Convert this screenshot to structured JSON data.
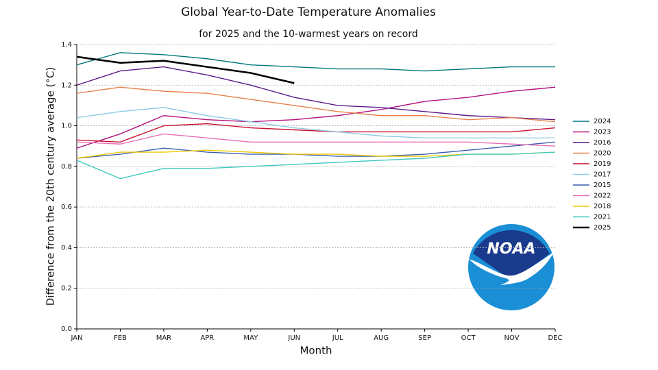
{
  "chart_data": {
    "type": "line",
    "title": "Global Year-to-Date Temperature Anomalies",
    "subtitle": "for 2025 and the 10-warmest years on record",
    "x_label": "Month",
    "y_label": "Difference from the 20th century average (°C)",
    "logo_text": "NOAA",
    "categories": [
      "JAN",
      "FEB",
      "MAR",
      "APR",
      "MAY",
      "JUN",
      "JUL",
      "AUG",
      "SEP",
      "OCT",
      "NOV",
      "DEC"
    ],
    "ylim": [
      0,
      1.4
    ],
    "yticks": [
      {
        "value": 0,
        "label": "0.0"
      },
      0.2,
      0.4,
      0.6,
      0.8,
      {
        "value": 1,
        "label": "1.0"
      },
      1.2,
      1.4
    ],
    "grid": true,
    "legend": "right",
    "series": [
      {
        "name": "2024",
        "color": "#00777a",
        "values": [
          1.3,
          1.36,
          1.35,
          1.33,
          1.3,
          1.29,
          1.28,
          1.28,
          1.27,
          1.28,
          1.29,
          1.29
        ]
      },
      {
        "name": "2023",
        "color": "#b5127e",
        "values": [
          0.89,
          0.96,
          1.05,
          1.03,
          1.02,
          1.03,
          1.05,
          1.08,
          1.12,
          1.14,
          1.17,
          1.19
        ]
      },
      {
        "name": "2016",
        "color": "#5a1a8a",
        "values": [
          1.2,
          1.27,
          1.29,
          1.25,
          1.2,
          1.14,
          1.1,
          1.09,
          1.07,
          1.05,
          1.04,
          1.03
        ]
      },
      {
        "name": "2020",
        "color": "#e8804a",
        "values": [
          1.16,
          1.19,
          1.17,
          1.16,
          1.13,
          1.1,
          1.07,
          1.05,
          1.05,
          1.03,
          1.04,
          1.02
        ]
      },
      {
        "name": "2019",
        "color": "#c8102e",
        "values": [
          0.93,
          0.92,
          1.0,
          1.01,
          0.99,
          0.98,
          0.97,
          0.97,
          0.97,
          0.97,
          0.97,
          0.99
        ]
      },
      {
        "name": "2017",
        "color": "#8ecae6",
        "values": [
          1.04,
          1.07,
          1.09,
          1.05,
          1.02,
          0.99,
          0.97,
          0.95,
          0.94,
          0.94,
          0.94,
          0.94
        ]
      },
      {
        "name": "2015",
        "color": "#3a5fb0",
        "values": [
          0.84,
          0.86,
          0.89,
          0.87,
          0.86,
          0.86,
          0.85,
          0.85,
          0.86,
          0.88,
          0.9,
          0.92
        ]
      },
      {
        "name": "2022",
        "color": "#e870b8",
        "values": [
          0.92,
          0.91,
          0.96,
          0.94,
          0.92,
          0.92,
          0.92,
          0.92,
          0.92,
          0.92,
          0.91,
          0.9
        ]
      },
      {
        "name": "2018",
        "color": "#f0c800",
        "values": [
          0.84,
          0.87,
          0.87,
          0.88,
          0.87,
          0.86,
          0.86,
          0.85,
          0.85,
          0.86,
          0.86,
          0.87
        ]
      },
      {
        "name": "2021",
        "color": "#40c8c0",
        "values": [
          0.83,
          0.74,
          0.79,
          0.79,
          0.8,
          0.81,
          0.82,
          0.83,
          0.84,
          0.86,
          0.86,
          0.87
        ]
      },
      {
        "name": "2025",
        "color": "#000000",
        "values": [
          1.34,
          1.31,
          1.32,
          1.29,
          1.26,
          1.21,
          null,
          null,
          null,
          null,
          null,
          null
        ]
      }
    ]
  }
}
